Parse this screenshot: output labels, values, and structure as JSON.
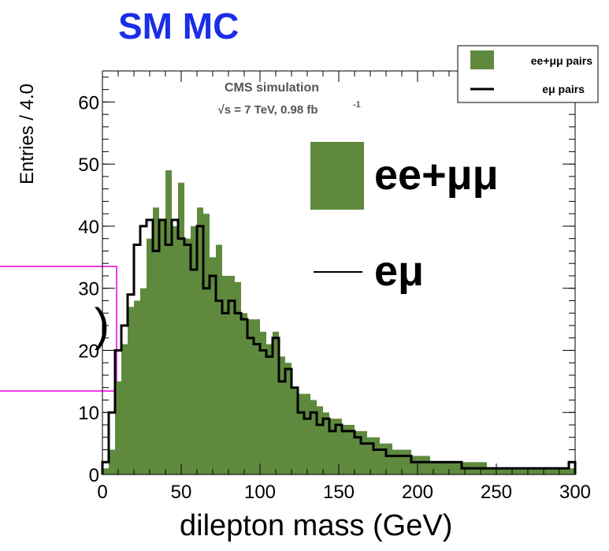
{
  "figure": {
    "title": "SM MC",
    "partial_box_text": ")"
  },
  "chart_data": {
    "type": "bar",
    "xlabel": "dilepton mass (GeV)",
    "ylabel": "Entries / 4.0",
    "xlim": [
      0,
      300
    ],
    "ylim": [
      0,
      65
    ],
    "x_ticks": [
      0,
      50,
      100,
      150,
      200,
      250,
      300
    ],
    "y_ticks": [
      0,
      10,
      20,
      30,
      40,
      50,
      60
    ],
    "bin_width": 4,
    "bin_edges_start": 0,
    "annotation": {
      "line1": "CMS simulation",
      "line2_prefix": "√s = 7 TeV, 0.98 fb",
      "line2_sup": "-1"
    },
    "legend": {
      "placement": "top-right",
      "entries": [
        "ee+μμ pairs",
        "eμ pairs"
      ]
    },
    "big_legend": {
      "entries": [
        "ee+μμ",
        "eμ"
      ]
    },
    "colors": {
      "filled": "#5f8a3e",
      "line": "#000000",
      "title": "#1a2ee6",
      "box": "#ee3ee0"
    },
    "series": [
      {
        "name": "ee+μμ pairs",
        "style": "filled",
        "values": [
          1,
          4,
          15,
          21,
          27,
          28,
          30,
          38,
          43,
          41,
          49,
          40,
          47,
          38,
          40,
          43,
          42,
          35,
          37,
          32,
          32,
          31,
          26,
          25,
          25,
          23,
          21,
          23,
          19,
          18,
          14,
          13,
          13,
          12,
          11,
          10,
          9,
          9,
          8,
          8,
          7,
          7,
          6,
          6,
          5,
          5,
          4,
          4,
          4,
          3,
          3,
          3,
          2,
          2,
          2,
          2,
          2,
          2,
          2,
          2,
          2,
          1,
          1,
          1,
          1,
          1,
          1,
          1,
          1,
          1,
          1,
          1,
          1,
          1,
          1
        ]
      },
      {
        "name": "eμ pairs",
        "style": "step",
        "values": [
          2,
          10,
          20,
          24,
          29,
          37,
          40,
          41,
          36,
          41,
          37,
          41,
          38,
          37,
          33,
          40,
          30,
          32,
          28,
          26,
          28,
          26,
          25,
          22,
          21,
          20,
          19,
          22,
          15,
          17,
          14,
          10,
          9,
          10,
          8,
          9,
          7,
          8,
          7,
          7,
          6,
          5,
          5,
          4,
          4,
          3,
          3,
          3,
          3,
          2,
          2,
          2,
          2,
          2,
          2,
          2,
          2,
          1,
          1,
          1,
          1,
          1,
          1,
          1,
          1,
          1,
          1,
          1,
          1,
          1,
          1,
          1,
          1,
          1,
          2
        ]
      }
    ]
  }
}
